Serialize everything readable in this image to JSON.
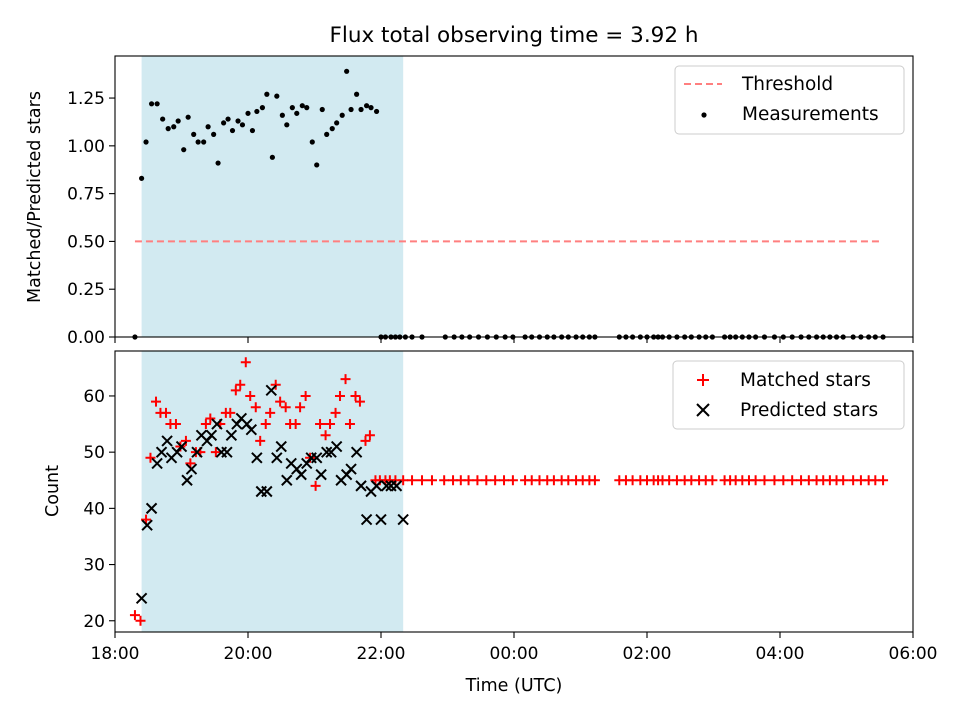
{
  "figure": {
    "title": "Flux total observing time = 3.92 h"
  },
  "chart_data": [
    {
      "type": "scatter",
      "panel": "top",
      "xlabel": "",
      "ylabel": "Matched/Predicted stars",
      "xlim": [
        "18:00",
        "06:00"
      ],
      "ylim": [
        0,
        1.47
      ],
      "yticks": [
        0.0,
        0.25,
        0.5,
        0.75,
        1.0,
        1.25
      ],
      "ytick_labels": [
        "0.00",
        "0.25",
        "0.50",
        "0.75",
        "1.00",
        "1.25"
      ],
      "shaded_span": [
        "18:24",
        "22:20"
      ],
      "legend": {
        "placement": "top-right",
        "entries": [
          "Threshold",
          "Measurements"
        ]
      },
      "series": [
        {
          "name": "Threshold",
          "style": "dashed-line",
          "color": "#ff7f7f",
          "x": [
            "18:18",
            "05:32"
          ],
          "y": [
            0.5,
            0.5
          ]
        },
        {
          "name": "Measurements",
          "style": "dot",
          "color": "#000000",
          "x": [
            "18:18",
            "18:24",
            "18:28",
            "18:33",
            "18:38",
            "18:43",
            "18:48",
            "18:53",
            "18:57",
            "19:02",
            "19:06",
            "19:11",
            "19:15",
            "19:20",
            "19:24",
            "19:29",
            "19:33",
            "19:38",
            "19:42",
            "19:46",
            "19:51",
            "19:55",
            "20:00",
            "20:04",
            "20:08",
            "20:13",
            "20:17",
            "20:22",
            "20:26",
            "20:31",
            "20:35",
            "20:40",
            "20:44",
            "20:49",
            "20:53",
            "20:58",
            "21:02",
            "21:07",
            "21:11",
            "21:16",
            "21:20",
            "21:25",
            "21:29",
            "21:33",
            "21:38",
            "21:42",
            "21:47",
            "21:51",
            "21:56",
            "22:00",
            "22:04",
            "22:09",
            "22:13",
            "22:17",
            "22:22",
            "22:28",
            "22:37",
            "22:58",
            "23:06",
            "23:13",
            "23:20",
            "23:28",
            "23:36",
            "23:44",
            "23:52",
            "23:59",
            "00:10",
            "00:16",
            "00:23",
            "00:30",
            "00:36",
            "00:43",
            "00:49",
            "00:56",
            "01:02",
            "01:08",
            "01:13",
            "01:35",
            "01:41",
            "01:47",
            "01:54",
            "02:00",
            "02:06",
            "02:10",
            "02:14",
            "02:20",
            "02:27",
            "02:34",
            "02:40",
            "02:47",
            "02:53",
            "02:59",
            "03:10",
            "03:15",
            "03:20",
            "03:26",
            "03:32",
            "03:38",
            "03:46",
            "03:55",
            "04:03",
            "04:11",
            "04:19",
            "04:26",
            "04:33",
            "04:39",
            "04:45",
            "04:51",
            "04:57",
            "05:06",
            "05:13",
            "05:20",
            "05:26",
            "05:33"
          ],
          "y": [
            0.0,
            0.83,
            1.02,
            1.22,
            1.22,
            1.14,
            1.09,
            1.1,
            1.13,
            0.98,
            1.15,
            1.06,
            1.02,
            1.02,
            1.1,
            1.06,
            0.91,
            1.12,
            1.14,
            1.08,
            1.13,
            1.11,
            1.17,
            1.08,
            1.18,
            1.2,
            1.27,
            0.94,
            1.26,
            1.16,
            1.11,
            1.2,
            1.17,
            1.21,
            1.2,
            1.02,
            0.9,
            1.19,
            1.06,
            1.09,
            1.12,
            1.16,
            1.39,
            1.19,
            1.27,
            1.19,
            1.21,
            1.2,
            1.18,
            0.0,
            0.0,
            0.0,
            0.0,
            0.0,
            0.0,
            0.0,
            0.0,
            0.0,
            0.0,
            0.0,
            0.0,
            0.0,
            0.0,
            0.0,
            0.0,
            0.0,
            0.0,
            0.0,
            0.0,
            0.0,
            0.0,
            0.0,
            0.0,
            0.0,
            0.0,
            0.0,
            0.0,
            0.0,
            0.0,
            0.0,
            0.0,
            0.0,
            0.0,
            0.0,
            0.0,
            0.0,
            0.0,
            0.0,
            0.0,
            0.0,
            0.0,
            0.0,
            0.0,
            0.0,
            0.0,
            0.0,
            0.0,
            0.0,
            0.0,
            0.0,
            0.0,
            0.0,
            0.0,
            0.0,
            0.0,
            0.0,
            0.0,
            0.0,
            0.0,
            0.0,
            0.0,
            0.0,
            0.0,
            0.0
          ]
        }
      ]
    },
    {
      "type": "scatter",
      "panel": "bottom",
      "xlabel": "Time (UTC)",
      "ylabel": "Count",
      "xlim": [
        "18:00",
        "06:00"
      ],
      "ylim": [
        18,
        68
      ],
      "xtick_labels": [
        "18:00",
        "20:00",
        "22:00",
        "00:00",
        "02:00",
        "04:00",
        "06:00"
      ],
      "yticks": [
        20,
        30,
        40,
        50,
        60
      ],
      "ytick_labels": [
        "20",
        "30",
        "40",
        "50",
        "60"
      ],
      "shaded_span": [
        "18:24",
        "22:20"
      ],
      "legend": {
        "placement": "top-right",
        "entries": [
          "Matched stars",
          "Predicted stars"
        ]
      },
      "series": [
        {
          "name": "Matched stars",
          "marker": "plus",
          "color": "#ff0000",
          "x": [
            "18:18",
            "18:23",
            "18:28",
            "18:32",
            "18:37",
            "18:41",
            "18:46",
            "18:50",
            "18:55",
            "18:59",
            "19:04",
            "19:08",
            "19:13",
            "19:17",
            "19:22",
            "19:26",
            "19:31",
            "19:35",
            "19:40",
            "19:44",
            "19:49",
            "19:53",
            "19:58",
            "20:02",
            "20:07",
            "20:11",
            "20:16",
            "20:20",
            "20:25",
            "20:29",
            "20:34",
            "20:38",
            "20:43",
            "20:47",
            "20:52",
            "20:56",
            "21:01",
            "21:05",
            "21:10",
            "21:14",
            "21:19",
            "21:23",
            "21:28",
            "21:32",
            "21:37",
            "21:41",
            "21:46",
            "21:50",
            "21:55",
            "21:59",
            "22:04",
            "22:08",
            "22:13",
            "22:20",
            "22:28",
            "22:37",
            "22:46",
            "22:57",
            "23:05",
            "23:12",
            "23:19",
            "23:27",
            "23:35",
            "23:43",
            "23:51",
            "23:59",
            "00:10",
            "00:16",
            "00:23",
            "00:30",
            "00:36",
            "00:43",
            "00:49",
            "00:56",
            "01:02",
            "01:08",
            "01:13",
            "01:35",
            "01:41",
            "01:47",
            "01:54",
            "02:00",
            "02:06",
            "02:10",
            "02:14",
            "02:20",
            "02:27",
            "02:34",
            "02:40",
            "02:47",
            "02:53",
            "02:59",
            "03:10",
            "03:15",
            "03:20",
            "03:26",
            "03:32",
            "03:38",
            "03:46",
            "03:55",
            "04:03",
            "04:11",
            "04:19",
            "04:26",
            "04:33",
            "04:39",
            "04:45",
            "04:51",
            "04:57",
            "05:06",
            "05:13",
            "05:20",
            "05:26",
            "05:33"
          ],
          "y": [
            21,
            20,
            38,
            49,
            59,
            57,
            57,
            55,
            55,
            51,
            52,
            48,
            50,
            50,
            55,
            56,
            50,
            55,
            57,
            57,
            61,
            62,
            66,
            60,
            58,
            52,
            55,
            57,
            62,
            59,
            58,
            55,
            55,
            58,
            60,
            49,
            44,
            55,
            53,
            55,
            57,
            60,
            63,
            55,
            60,
            59,
            52,
            53,
            45,
            45,
            45,
            45,
            45,
            45,
            45,
            45,
            45,
            45,
            45,
            45,
            45,
            45,
            45,
            45,
            45,
            45,
            45,
            45,
            45,
            45,
            45,
            45,
            45,
            45,
            45,
            45,
            45,
            45,
            45,
            45,
            45,
            45,
            45,
            45,
            45,
            45,
            45,
            45,
            45,
            45,
            45,
            45,
            45,
            45,
            45,
            45,
            45,
            45,
            45,
            45,
            45,
            45,
            45,
            45,
            45,
            45,
            45,
            45,
            45,
            45,
            45,
            45,
            45,
            45
          ]
        },
        {
          "name": "Predicted stars",
          "marker": "x",
          "color": "#000000",
          "x": [
            "18:24",
            "18:29",
            "18:33",
            "18:38",
            "18:42",
            "18:47",
            "18:51",
            "18:56",
            "19:00",
            "19:05",
            "19:09",
            "19:14",
            "19:18",
            "19:23",
            "19:27",
            "19:32",
            "19:36",
            "19:41",
            "19:45",
            "19:50",
            "19:54",
            "19:59",
            "20:03",
            "20:08",
            "20:12",
            "20:17",
            "20:21",
            "20:26",
            "20:30",
            "20:35",
            "20:39",
            "20:44",
            "20:48",
            "20:53",
            "20:57",
            "21:02",
            "21:06",
            "21:11",
            "21:15",
            "21:20",
            "21:24",
            "21:29",
            "21:33",
            "21:38",
            "21:42",
            "21:47",
            "21:51",
            "21:56",
            "22:00",
            "22:05",
            "22:09",
            "22:14",
            "22:20"
          ],
          "y": [
            24,
            37,
            40,
            48,
            50,
            52,
            49,
            50,
            51,
            45,
            47,
            50,
            53,
            52,
            53,
            55,
            50,
            50,
            53,
            55,
            56,
            55,
            54,
            49,
            43,
            43,
            61,
            49,
            51,
            45,
            48,
            47,
            46,
            48,
            49,
            49,
            46,
            50,
            50,
            51,
            45,
            46,
            47,
            50,
            44,
            38,
            43,
            44,
            38,
            44,
            44,
            44,
            38
          ]
        }
      ]
    }
  ]
}
